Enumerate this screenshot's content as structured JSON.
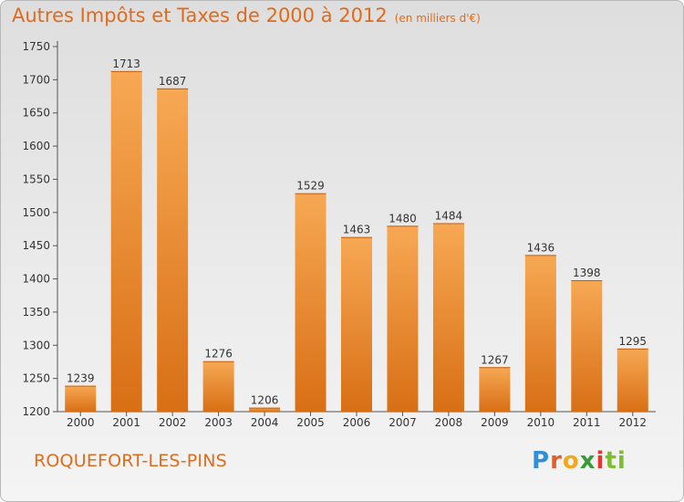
{
  "title": "Autres Impôts et Taxes de 2000 à 2012",
  "subtitle": "(en milliers d'€)",
  "town": "ROQUEFORT-LES-PINS",
  "logo": {
    "p1": "P",
    "p2": "r",
    "p3": "o",
    "p4": "x",
    "p5": "i",
    "p6": "ti"
  },
  "colors": {
    "title": "#e06b1a",
    "bar_light": "#f7a854",
    "bar_dark": "#d86f15"
  },
  "chart_data": {
    "type": "bar",
    "categories": [
      "2000",
      "2001",
      "2002",
      "2003",
      "2004",
      "2005",
      "2006",
      "2007",
      "2008",
      "2009",
      "2010",
      "2011",
      "2012"
    ],
    "values": [
      1239,
      1713,
      1687,
      1276,
      1206,
      1529,
      1463,
      1480,
      1484,
      1267,
      1436,
      1398,
      1295
    ],
    "ylim": [
      1200,
      1750
    ],
    "yticks": [
      1200,
      1250,
      1300,
      1350,
      1400,
      1450,
      1500,
      1550,
      1600,
      1650,
      1700,
      1750
    ],
    "grid": false,
    "xlabel": "",
    "ylabel": ""
  }
}
